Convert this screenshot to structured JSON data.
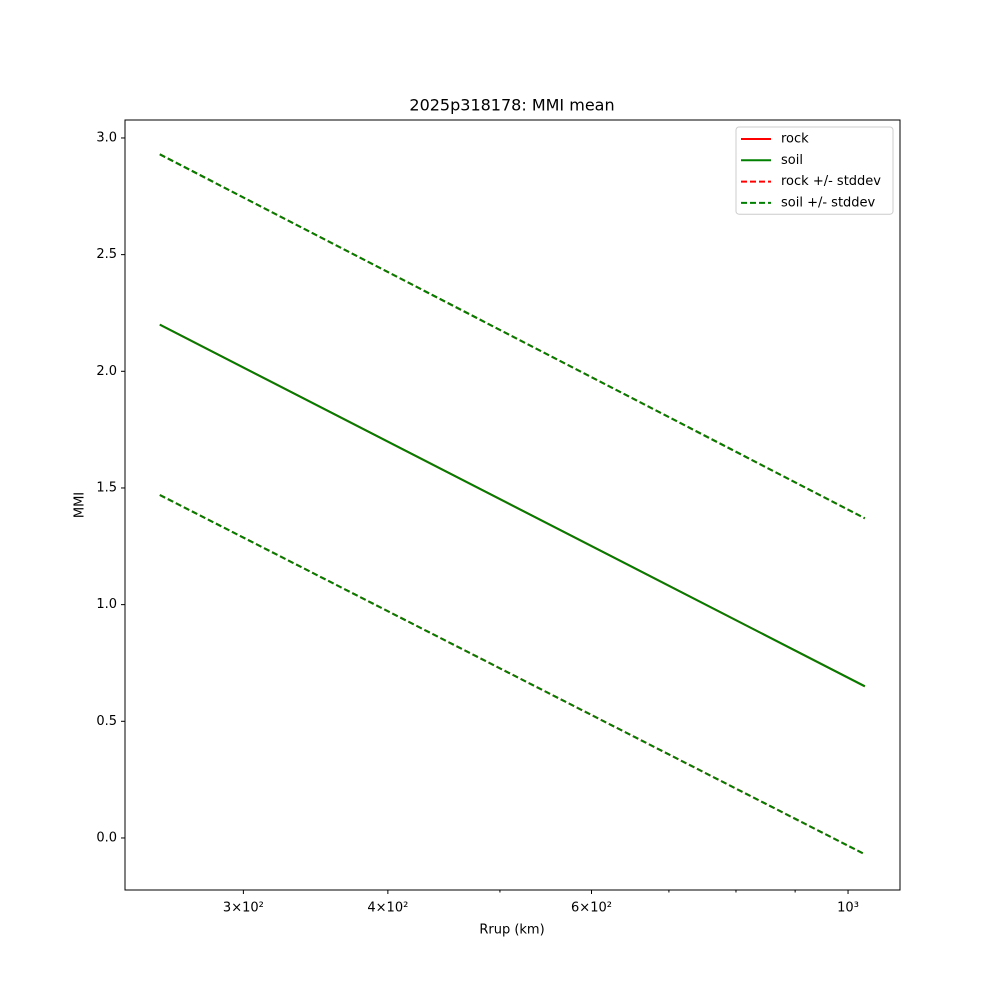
{
  "chart_data": {
    "type": "line",
    "title": "2025p318178: MMI mean",
    "xlabel": "Rrup (km)",
    "ylabel": "MMI",
    "xscale": "log",
    "x": [
      254,
      1034
    ],
    "series": [
      {
        "name": "rock",
        "color": "#ff0000",
        "dashed": false,
        "values": [
          2.2,
          0.65
        ]
      },
      {
        "name": "soil",
        "color": "#008000",
        "dashed": false,
        "values": [
          2.2,
          0.65
        ]
      },
      {
        "name": "rock +/- stddev",
        "color": "#ff0000",
        "dashed": true,
        "upper": [
          2.93,
          1.37
        ],
        "lower": [
          1.47,
          -0.07
        ]
      },
      {
        "name": "soil +/- stddev",
        "color": "#008000",
        "dashed": true,
        "upper": [
          2.93,
          1.37
        ],
        "lower": [
          1.47,
          -0.07
        ]
      }
    ],
    "xlim": [
      237,
      1109
    ],
    "xticks": [
      {
        "value": 300,
        "label": "3×10²"
      },
      {
        "value": 400,
        "label": "4×10²"
      },
      {
        "value": 600,
        "label": "6×10²"
      },
      {
        "value": 1000,
        "label": "10³"
      }
    ],
    "xminorticks": [
      500,
      700,
      800,
      900
    ],
    "ylim": [
      -0.223,
      3.077
    ],
    "yticks": [
      {
        "value": 0,
        "label": "0.0"
      },
      0.5,
      {
        "value": 1,
        "label": "1.0"
      },
      1.5,
      {
        "value": 2,
        "label": "2.0"
      },
      2.5,
      {
        "value": 3,
        "label": "3.0"
      }
    ],
    "legend": "upper right"
  }
}
